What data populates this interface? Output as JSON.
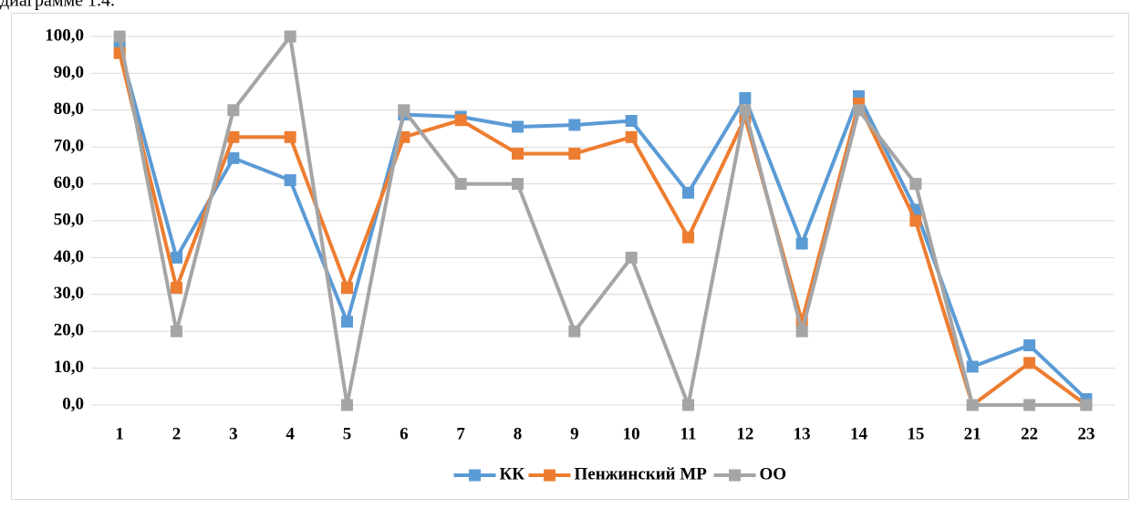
{
  "caption_text": "диаграмме 1.4.",
  "chart_data": {
    "type": "line",
    "categories": [
      "1",
      "2",
      "3",
      "4",
      "5",
      "6",
      "7",
      "8",
      "9",
      "10",
      "11",
      "12",
      "13",
      "14",
      "15",
      "21",
      "22",
      "23"
    ],
    "series": [
      {
        "name": "КК",
        "color": "#5b9bd5",
        "values": [
          97,
          40,
          67,
          61,
          22.6,
          78.8,
          78.2,
          75.5,
          76,
          77.1,
          57.6,
          83.3,
          43.8,
          83.8,
          53,
          10.4,
          16.2,
          1.6
        ]
      },
      {
        "name": "Пенжинский МР",
        "color": "#ed7d31",
        "values": [
          95.5,
          31.8,
          72.7,
          72.7,
          31.8,
          72.7,
          77.3,
          68.2,
          68.2,
          72.7,
          45.5,
          78,
          22.7,
          81.8,
          50,
          0,
          11.4,
          0
        ]
      },
      {
        "name": "ОО",
        "color": "#a5a5a5",
        "values": [
          100,
          20,
          80,
          100,
          0,
          80,
          60,
          60,
          20,
          40,
          0,
          80,
          20,
          80,
          60,
          0,
          0,
          0
        ]
      }
    ],
    "ylim": [
      0,
      100
    ],
    "yticks": [
      {
        "value": 0,
        "label": "0,0"
      },
      {
        "value": 10,
        "label": "10,0"
      },
      {
        "value": 20,
        "label": "20,0"
      },
      {
        "value": 30,
        "label": "30,0"
      },
      {
        "value": 40,
        "label": "40,0"
      },
      {
        "value": 50,
        "label": "50,0"
      },
      {
        "value": 60,
        "label": "60,0"
      },
      {
        "value": 70,
        "label": "70,0"
      },
      {
        "value": 80,
        "label": "80,0"
      },
      {
        "value": 90,
        "label": "90,0"
      },
      {
        "value": 100,
        "label": "100,0"
      }
    ],
    "grid": true,
    "legend": "bottom"
  }
}
